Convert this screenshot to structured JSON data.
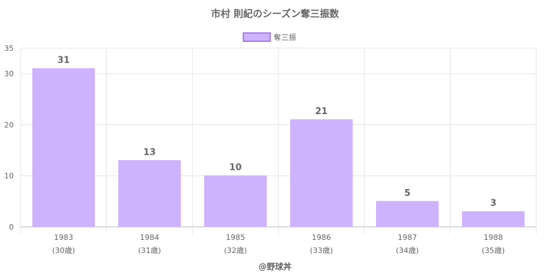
{
  "chart_data": {
    "type": "bar",
    "title": "市村 則紀のシーズン奪三振数",
    "categories": [
      "1983",
      "1984",
      "1985",
      "1986",
      "1987",
      "1988"
    ],
    "sublabels": [
      "(30歳)",
      "(31歳)",
      "(32歳)",
      "(33歳)",
      "(34歳)",
      "(35歳)"
    ],
    "series": [
      {
        "name": "奪三振",
        "values": [
          31,
          13,
          10,
          21,
          5,
          3
        ]
      }
    ],
    "ylim": [
      0,
      35
    ],
    "yticks": [
      0,
      10,
      20,
      30,
      35
    ],
    "grid": true,
    "legend": "top-center",
    "bar_color": "#cdb3ff",
    "bar_border_color": "#a77ff2"
  },
  "footer": "@野球丼"
}
